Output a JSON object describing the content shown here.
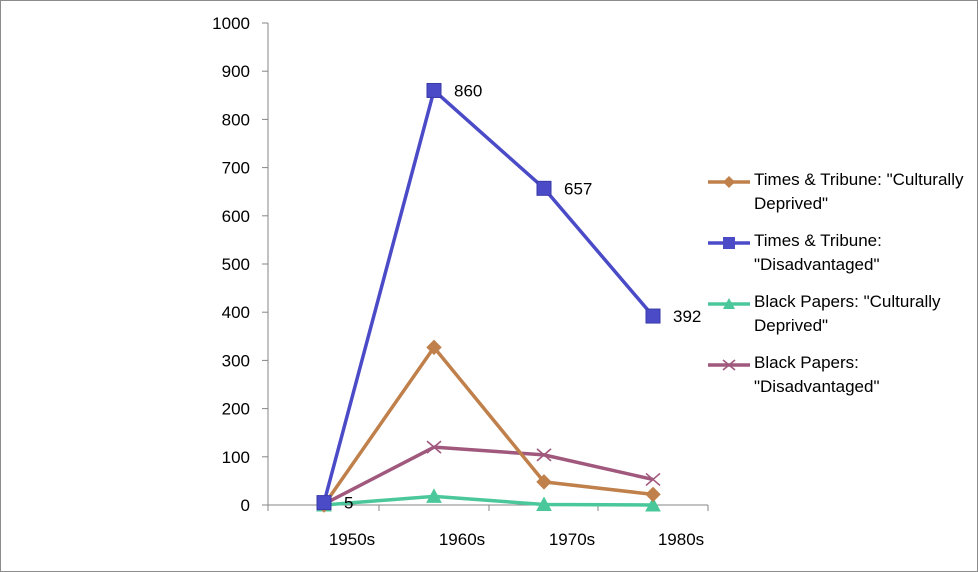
{
  "chart_data": {
    "type": "line",
    "categories": [
      "1950s",
      "1960s",
      "1970s",
      "1980s"
    ],
    "ylim": [
      0,
      1000
    ],
    "yticks": [
      0,
      100,
      200,
      300,
      400,
      500,
      600,
      700,
      800,
      900,
      1000
    ],
    "grid": false,
    "legend_position": "right",
    "series": [
      {
        "name": "Times & Tribune: \"Culturally Deprived\"",
        "values": [
          0,
          327,
          48,
          22
        ],
        "color": "#C0804B",
        "marker": "diamond"
      },
      {
        "name": "Times & Tribune: \"Disadvantaged\"",
        "values": [
          5,
          860,
          657,
          392
        ],
        "color": "#4B4BC8",
        "marker": "square",
        "data_labels": [
          "5",
          "860",
          "657",
          "392"
        ]
      },
      {
        "name": "Black Papers: \"Culturally Deprived\"",
        "values": [
          0,
          18,
          1,
          0
        ],
        "color": "#4BC89B",
        "marker": "triangle"
      },
      {
        "name": "Black Papers: \"Disadvantaged\"",
        "values": [
          2,
          120,
          104,
          53
        ],
        "color": "#A0587D",
        "marker": "x"
      }
    ]
  }
}
